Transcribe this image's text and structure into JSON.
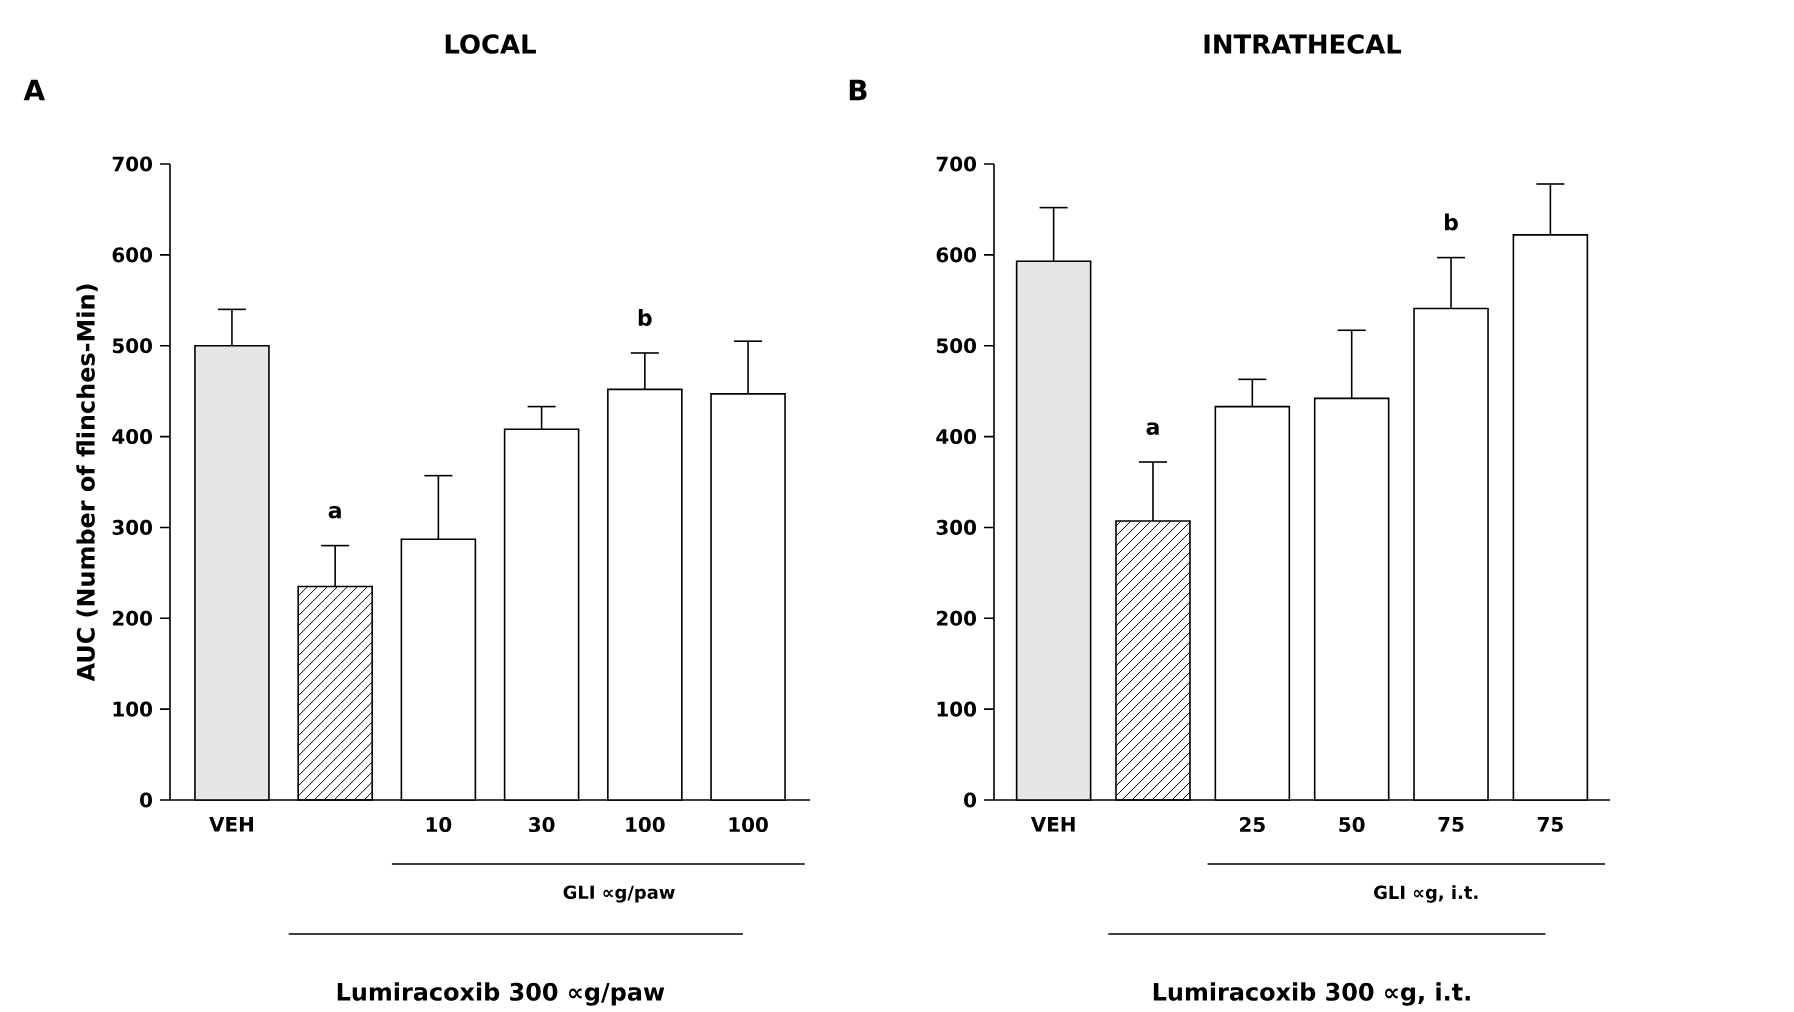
{
  "chart_data": [
    {
      "type": "bar",
      "title": "LOCAL",
      "ylabel": "AUC (Number of flinches-Min)",
      "xlabel": "Lumiracoxib 300 ∝g/paw",
      "categories": [
        "VEH",
        null,
        "10",
        "30",
        "100",
        "100"
      ],
      "values": [
        500,
        235,
        287,
        408,
        452,
        447
      ],
      "colors": [
        "#e6e6e6",
        "#000000",
        "#ffffff",
        "#ffffff",
        "#ffffff",
        "#ffffff"
      ],
      "errors": [
        [
          500,
          540
        ],
        [
          235,
          280
        ],
        [
          287,
          357
        ],
        [
          408,
          433
        ],
        [
          452,
          492
        ],
        [
          447,
          505
        ]
      ],
      "ylim": [
        0,
        700
      ],
      "yticks": [
        0,
        100,
        200,
        300,
        400,
        500,
        600,
        700
      ],
      "annotations": [
        "A",
        "GLI ∝g/paw",
        "a",
        "b"
      ]
    },
    {
      "type": "bar",
      "title": "INTRATHECAL",
      "xlabel": "Lumiracoxib 300 ∝g, i.t.",
      "categories": [
        "VEH",
        null,
        "25",
        "50",
        "75",
        "75"
      ],
      "values": [
        593,
        307,
        433,
        442,
        541,
        622
      ],
      "colors": [
        "#e6e6e6",
        "#000000",
        "#ffffff",
        "#ffffff",
        "#ffffff",
        "#ffffff"
      ],
      "errors": [
        [
          593,
          652
        ],
        [
          307,
          372
        ],
        [
          433,
          463
        ],
        [
          442,
          517
        ],
        [
          541,
          597
        ],
        [
          622,
          678
        ]
      ],
      "ylim": [
        0,
        700
      ],
      "yticks": [
        0,
        100,
        200,
        300,
        400,
        500,
        600,
        700
      ],
      "annotations": [
        "B",
        "GLI ∝g, i.t.",
        "a",
        "b"
      ]
    }
  ]
}
